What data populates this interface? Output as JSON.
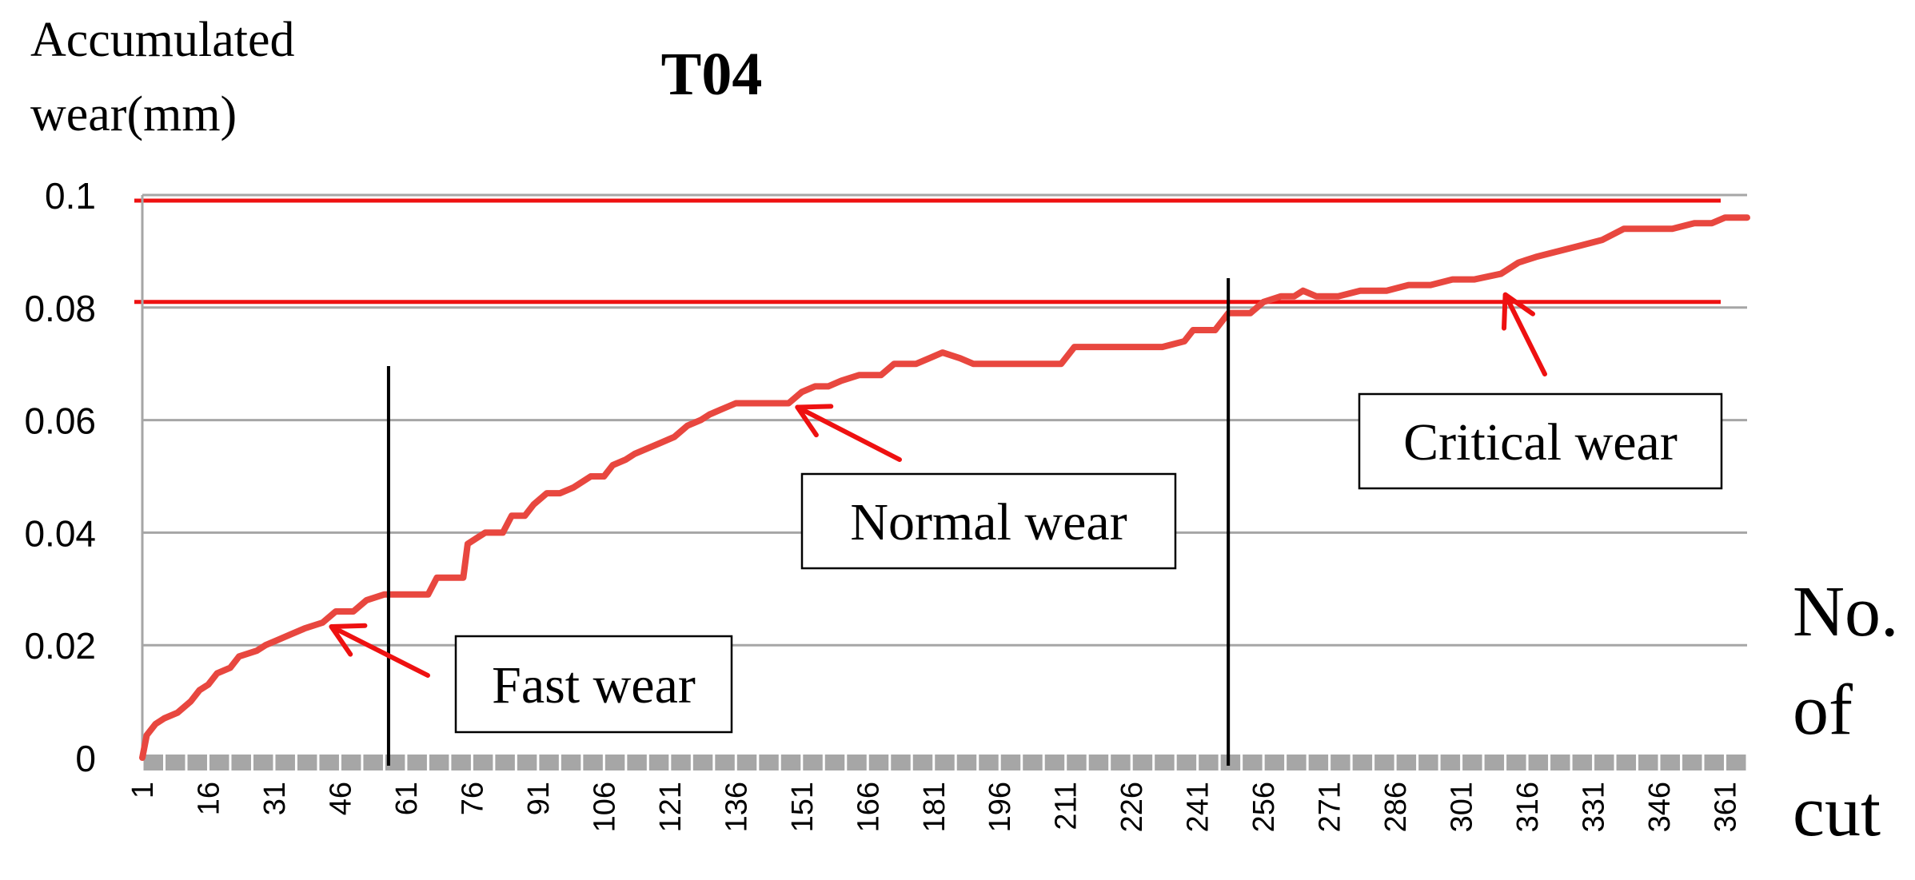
{
  "chart_data": {
    "type": "line",
    "title": "T04",
    "ylabel_lines": [
      "Accumulated",
      "wear(mm)"
    ],
    "xlabel_lines": [
      "No.",
      "of",
      "cut"
    ],
    "ylim": [
      0,
      0.1
    ],
    "yticks": [
      "0",
      "0.02",
      "0.04",
      "0.06",
      "0.08",
      "0.1"
    ],
    "xlim": [
      1,
      366
    ],
    "xticks": [
      "1",
      "16",
      "31",
      "46",
      "61",
      "76",
      "91",
      "106",
      "121",
      "136",
      "151",
      "166",
      "181",
      "196",
      "211",
      "226",
      "241",
      "256",
      "271",
      "286",
      "301",
      "316",
      "331",
      "346",
      "361"
    ],
    "grid": true,
    "line_color": "#e8473f",
    "threshold_color": "#ee1111",
    "thresholds": [
      0.081,
      0.099
    ],
    "phase_boundaries": [
      57,
      248
    ],
    "series": [
      {
        "points": [
          [
            1,
            0
          ],
          [
            2,
            0.004
          ],
          [
            4,
            0.006
          ],
          [
            6,
            0.007
          ],
          [
            9,
            0.008
          ],
          [
            12,
            0.01
          ],
          [
            14,
            0.012
          ],
          [
            16,
            0.013
          ],
          [
            18,
            0.015
          ],
          [
            21,
            0.016
          ],
          [
            23,
            0.018
          ],
          [
            27,
            0.019
          ],
          [
            29,
            0.02
          ],
          [
            32,
            0.021
          ],
          [
            35,
            0.022
          ],
          [
            38,
            0.023
          ],
          [
            42,
            0.024
          ],
          [
            45,
            0.026
          ],
          [
            49,
            0.026
          ],
          [
            52,
            0.028
          ],
          [
            56,
            0.029
          ],
          [
            60,
            0.029
          ],
          [
            66,
            0.029
          ],
          [
            68,
            0.032
          ],
          [
            71,
            0.032
          ],
          [
            74,
            0.032
          ],
          [
            75,
            0.038
          ],
          [
            77,
            0.039
          ],
          [
            79,
            0.04
          ],
          [
            83,
            0.04
          ],
          [
            85,
            0.043
          ],
          [
            88,
            0.043
          ],
          [
            90,
            0.045
          ],
          [
            93,
            0.047
          ],
          [
            96,
            0.047
          ],
          [
            99,
            0.048
          ],
          [
            103,
            0.05
          ],
          [
            106,
            0.05
          ],
          [
            108,
            0.052
          ],
          [
            111,
            0.053
          ],
          [
            113,
            0.054
          ],
          [
            116,
            0.055
          ],
          [
            119,
            0.056
          ],
          [
            122,
            0.057
          ],
          [
            125,
            0.059
          ],
          [
            128,
            0.06
          ],
          [
            130,
            0.061
          ],
          [
            133,
            0.062
          ],
          [
            136,
            0.063
          ],
          [
            142,
            0.063
          ],
          [
            148,
            0.063
          ],
          [
            151,
            0.065
          ],
          [
            154,
            0.066
          ],
          [
            157,
            0.066
          ],
          [
            160,
            0.067
          ],
          [
            164,
            0.068
          ],
          [
            169,
            0.068
          ],
          [
            172,
            0.07
          ],
          [
            177,
            0.07
          ],
          [
            180,
            0.071
          ],
          [
            183,
            0.072
          ],
          [
            187,
            0.071
          ],
          [
            190,
            0.07
          ],
          [
            198,
            0.07
          ],
          [
            205,
            0.07
          ],
          [
            210,
            0.07
          ],
          [
            213,
            0.073
          ],
          [
            220,
            0.073
          ],
          [
            227,
            0.073
          ],
          [
            233,
            0.073
          ],
          [
            238,
            0.074
          ],
          [
            240,
            0.076
          ],
          [
            245,
            0.076
          ],
          [
            248,
            0.079
          ],
          [
            253,
            0.079
          ],
          [
            256,
            0.081
          ],
          [
            260,
            0.082
          ],
          [
            263,
            0.082
          ],
          [
            265,
            0.083
          ],
          [
            268,
            0.082
          ],
          [
            273,
            0.082
          ],
          [
            278,
            0.083
          ],
          [
            284,
            0.083
          ],
          [
            289,
            0.084
          ],
          [
            294,
            0.084
          ],
          [
            299,
            0.085
          ],
          [
            304,
            0.085
          ],
          [
            310,
            0.086
          ],
          [
            314,
            0.088
          ],
          [
            318,
            0.089
          ],
          [
            323,
            0.09
          ],
          [
            328,
            0.091
          ],
          [
            333,
            0.092
          ],
          [
            338,
            0.094
          ],
          [
            344,
            0.094
          ],
          [
            349,
            0.094
          ],
          [
            354,
            0.095
          ],
          [
            358,
            0.095
          ],
          [
            361,
            0.096
          ],
          [
            366,
            0.096
          ]
        ]
      }
    ],
    "annotations": [
      {
        "text": "Fast wear",
        "arrow_to": [
          44,
          0.025
        ]
      },
      {
        "text": "Normal wear",
        "arrow_to": [
          150,
          0.064
        ]
      },
      {
        "text": "Critical wear",
        "arrow_to": [
          311,
          0.084
        ]
      }
    ]
  }
}
